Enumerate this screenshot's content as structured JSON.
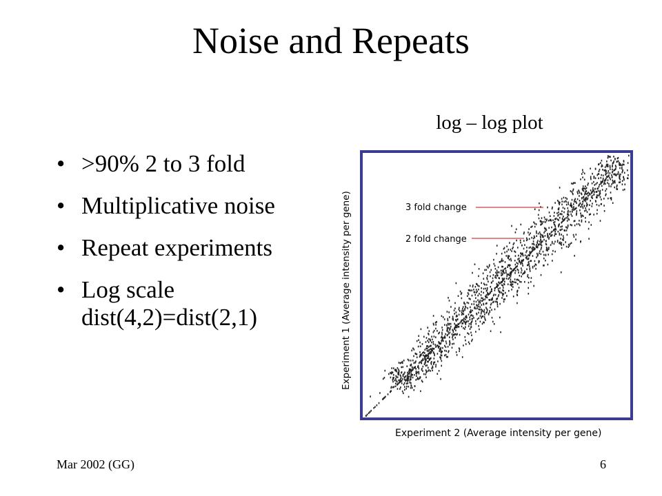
{
  "slide": {
    "title": "Noise and Repeats",
    "subtitle": "log – log  plot",
    "bullets": [
      {
        "line1": ">90% 2 to 3 fold",
        "line2": ""
      },
      {
        "line1": "Multiplicative noise",
        "line2": ""
      },
      {
        "line1": "Repeat experiments",
        "line2": ""
      },
      {
        "line1": "Log scale",
        "line2": "dist(4,2)=dist(2,1)"
      }
    ],
    "footer_left": "Mar 2002 (GG)",
    "page_number": "6"
  },
  "plot": {
    "frame_color": "#3b3b8f",
    "line_color": "#d33a3a",
    "xlabel": "Experiment 2  (Average intensity per gene)",
    "ylabel": "Experiment 1  (Average intensity per gene)",
    "annotations": [
      "3 fold change",
      "2 fold change"
    ]
  }
}
